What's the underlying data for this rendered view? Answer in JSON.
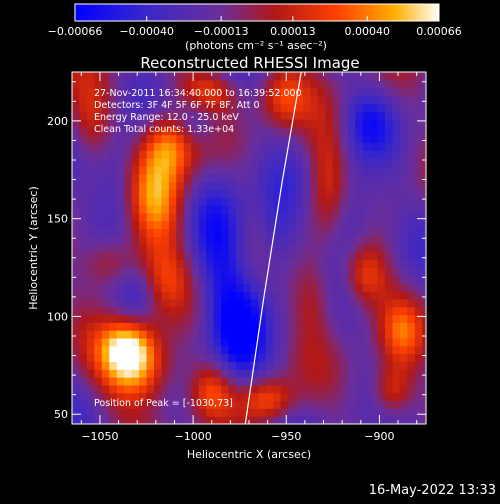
{
  "chart_data": {
    "type": "heatmap",
    "title": "Reconstructed RHESSI Image",
    "xlabel": "Heliocentric X (arcsec)",
    "ylabel": "Heliocentric Y (arcsec)",
    "xlim": [
      -1065,
      -875
    ],
    "ylim": [
      45,
      225
    ],
    "x_ticks": [
      -1050,
      -1000,
      -950,
      -900
    ],
    "x_tick_labels": [
      "−1050",
      "−1000",
      "−950",
      "−900"
    ],
    "y_ticks": [
      50,
      100,
      150,
      200
    ],
    "y_tick_labels": [
      "50",
      "100",
      "150",
      "200"
    ],
    "colorbar": {
      "label": "(photons cm⁻² s⁻¹ asec⁻²)",
      "range": [
        -0.00066,
        0.00066
      ],
      "ticks": [
        -0.00066,
        -0.0004,
        -0.00013,
        0.00013,
        0.0004,
        0.00066
      ],
      "tick_labels": [
        "−0.00066",
        "−0.00040",
        "−0.00013",
        "0.00013",
        "0.00040",
        "0.00066"
      ]
    },
    "annotations": [
      "27-Nov-2011 16:34:40.000 to 16:39:52.000",
      "Detectors: 3F 4F 5F 6F 7F 8F, Att 0",
      "Energy Range: 12.0 - 25.0 keV",
      "Clean    Total counts: 1.33e+04"
    ],
    "peak_label": "Position of Peak = [-1030,73]",
    "limb_curve": {
      "x": [
        -972,
        -962,
        -952,
        -942
      ],
      "y": [
        45,
        110,
        170,
        225
      ]
    },
    "blobs": [
      {
        "x": -1030,
        "y": 73,
        "v": 0.00066,
        "sx": 14,
        "sy": 13
      },
      {
        "x": -1035,
        "y": 85,
        "v": 0.00055,
        "sx": 10,
        "sy": 10
      },
      {
        "x": -1018,
        "y": 160,
        "v": 0.00062,
        "sx": 11,
        "sy": 20
      },
      {
        "x": -1012,
        "y": 190,
        "v": 0.0005,
        "sx": 10,
        "sy": 12
      },
      {
        "x": -1045,
        "y": 128,
        "v": 0.00038,
        "sx": 10,
        "sy": 10
      },
      {
        "x": -992,
        "y": 215,
        "v": 0.00042,
        "sx": 12,
        "sy": 8
      },
      {
        "x": -990,
        "y": 62,
        "v": 0.00035,
        "sx": 8,
        "sy": 10
      },
      {
        "x": -960,
        "y": 58,
        "v": 0.00045,
        "sx": 10,
        "sy": 8
      },
      {
        "x": -952,
        "y": 212,
        "v": 0.00033,
        "sx": 9,
        "sy": 11
      },
      {
        "x": -928,
        "y": 170,
        "v": 0.00036,
        "sx": 8,
        "sy": 22
      },
      {
        "x": -908,
        "y": 122,
        "v": 0.00048,
        "sx": 9,
        "sy": 12
      },
      {
        "x": -888,
        "y": 92,
        "v": 0.00035,
        "sx": 8,
        "sy": 12
      },
      {
        "x": -893,
        "y": 62,
        "v": 0.00045,
        "sx": 8,
        "sy": 10
      },
      {
        "x": -1055,
        "y": 200,
        "v": 0.0003,
        "sx": 9,
        "sy": 15
      },
      {
        "x": -935,
        "y": 110,
        "v": 0.00028,
        "sx": 8,
        "sy": 15
      },
      {
        "x": -1015,
        "y": 120,
        "v": 0.0002,
        "sx": 9,
        "sy": 12
      },
      {
        "x": -985,
        "y": 135,
        "v": -0.00035,
        "sx": 10,
        "sy": 28
      },
      {
        "x": -1040,
        "y": 170,
        "v": -0.0003,
        "sx": 9,
        "sy": 18
      },
      {
        "x": -975,
        "y": 90,
        "v": -0.0004,
        "sx": 10,
        "sy": 20
      },
      {
        "x": -915,
        "y": 150,
        "v": -0.00035,
        "sx": 10,
        "sy": 18
      },
      {
        "x": -955,
        "y": 140,
        "v": -0.0003,
        "sx": 8,
        "sy": 18
      },
      {
        "x": -1030,
        "y": 110,
        "v": -0.0002,
        "sx": 8,
        "sy": 10
      },
      {
        "x": -1000,
        "y": 200,
        "v": -0.0003,
        "sx": 9,
        "sy": 10
      },
      {
        "x": -905,
        "y": 200,
        "v": -0.00025,
        "sx": 9,
        "sy": 11
      }
    ]
  },
  "footer": {
    "timestamp": "16-May-2022 13:33"
  },
  "colors": {
    "background": "#000000",
    "colormap": [
      "#0000ff",
      "#4b2fb0",
      "#6a2e9a",
      "#b01818",
      "#ff4000",
      "#ffb000",
      "#ffffff"
    ]
  }
}
